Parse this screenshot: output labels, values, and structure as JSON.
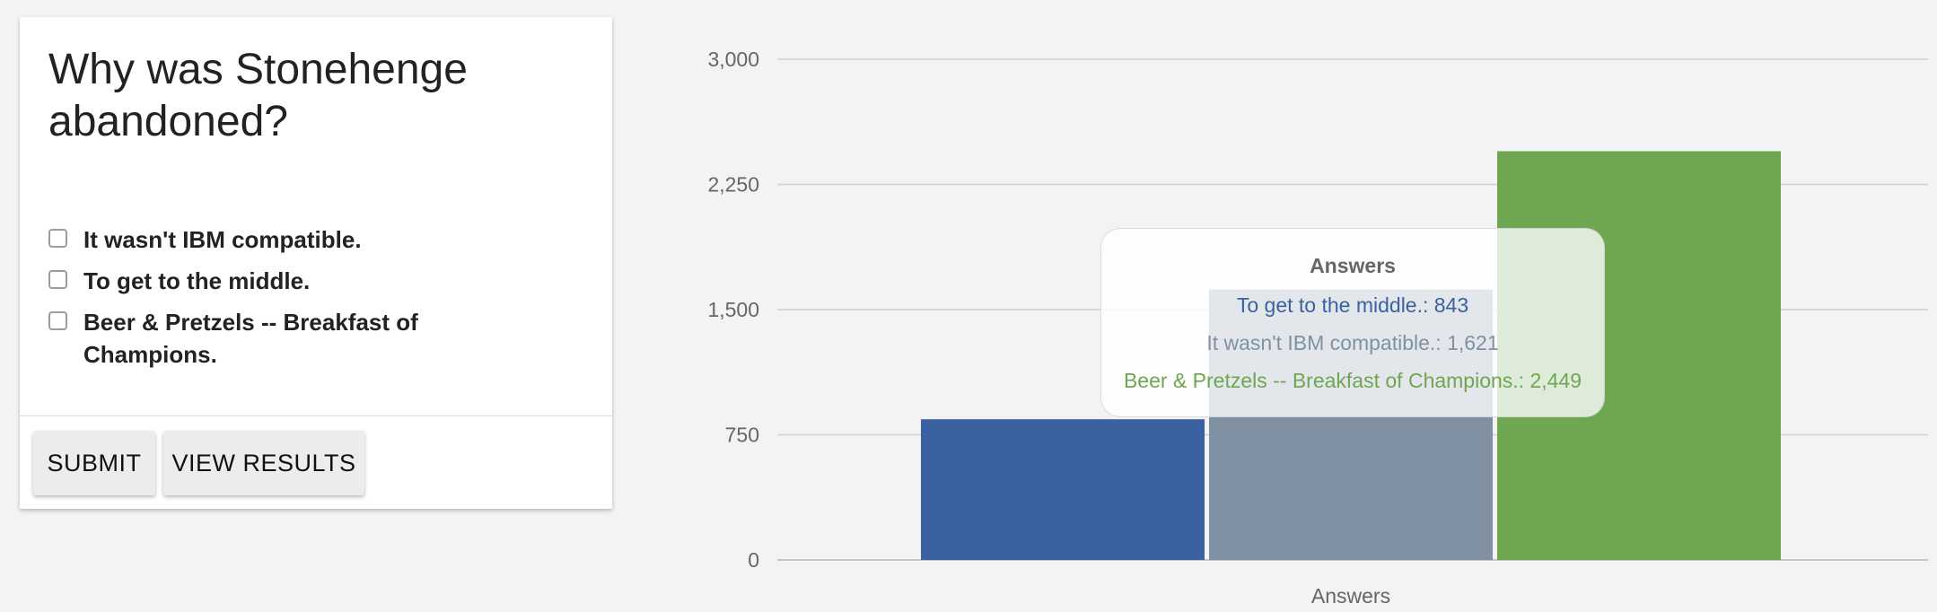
{
  "poll": {
    "question": "Why was Stonehenge abandoned?",
    "options": [
      "It wasn't IBM compatible.",
      "To get to the middle.",
      "Beer & Pretzels -- Breakfast of Champions."
    ],
    "buttons": {
      "submit": "SUBMIT",
      "view_results": "VIEW RESULTS"
    }
  },
  "chart_data": {
    "type": "bar",
    "xlabel": "Answers",
    "categories": [
      "Answers"
    ],
    "ylim": [
      0,
      3000
    ],
    "yticks": [
      "0",
      "750",
      "1,500",
      "2,250",
      "3,000"
    ],
    "grid": true,
    "series": [
      {
        "name": "To get to the middle.",
        "value": 843,
        "color": "#3a62a0"
      },
      {
        "name": "It wasn't IBM compatible.",
        "value": 1621,
        "color": "#7f91a3"
      },
      {
        "name": "Beer & Pretzels -- Breakfast of Champions.",
        "value": 2449,
        "color": "#6fa652"
      }
    ]
  },
  "tooltip": {
    "title": "Answers",
    "rows": [
      {
        "text": "To get to the middle.: 843",
        "color": "#3a62a0"
      },
      {
        "text": "It wasn't IBM compatible.: 1,621",
        "color": "#7f91a3"
      },
      {
        "text": "Beer & Pretzels -- Breakfast of Champions.: 2,449",
        "color": "#6fa652"
      }
    ]
  }
}
